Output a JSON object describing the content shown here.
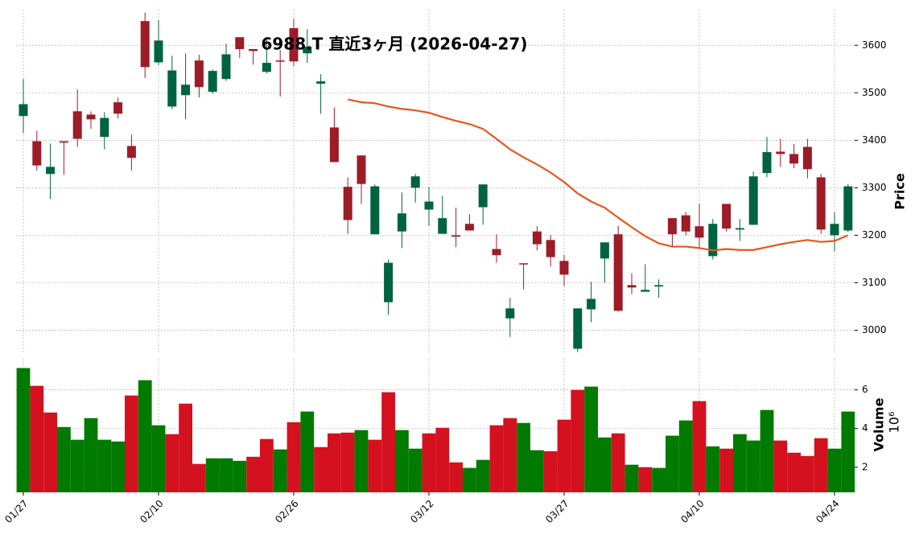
{
  "chart_data": {
    "type": "candlestick",
    "title": "6988.T 直近3ヶ月 (2026-04-27)",
    "categories": [
      "01/27",
      null,
      null,
      null,
      null,
      null,
      null,
      null,
      null,
      null,
      "02/10",
      null,
      null,
      null,
      null,
      null,
      null,
      null,
      null,
      null,
      "02/26",
      null,
      null,
      null,
      null,
      null,
      null,
      null,
      null,
      null,
      "03/12",
      null,
      null,
      null,
      null,
      null,
      null,
      null,
      null,
      null,
      "03/27",
      null,
      null,
      null,
      null,
      null,
      null,
      null,
      null,
      null,
      "04/10",
      null,
      null,
      null,
      null,
      null,
      null,
      null,
      null,
      null,
      "04/24",
      null
    ],
    "open": [
      3451,
      3398,
      3329,
      3398,
      3461,
      3454,
      3407,
      3480,
      3388,
      3651,
      3564,
      3471,
      3495,
      3568,
      3502,
      3529,
      3617,
      3592,
      3544,
      3568,
      3636,
      3583,
      3519,
      3427,
      3302,
      3368,
      3202,
      3059,
      3208,
      3300,
      3254,
      3203,
      3200,
      3224,
      3259,
      3171,
      3025,
      3141,
      3208,
      3190,
      3146,
      2961,
      3044,
      3151,
      3202,
      3095,
      3081,
      3092,
      3236,
      3242,
      3219,
      3156,
      3266,
      3212,
      3222,
      3331,
      3376,
      3371,
      3386,
      3322,
      3200,
      3210
    ],
    "high": [
      3529,
      3420,
      3393,
      3398,
      3507,
      3461,
      3459,
      3490,
      3412,
      3669,
      3653,
      3578,
      3583,
      3580,
      3549,
      3603,
      3617,
      3592,
      3615,
      3590,
      3656,
      3634,
      3539,
      3469,
      3322,
      3368,
      3307,
      3149,
      3290,
      3329,
      3302,
      3283,
      3258,
      3244,
      3307,
      3202,
      3068,
      3141,
      3219,
      3200,
      3159,
      3046,
      3102,
      3185,
      3220,
      3120,
      3139,
      3107,
      3236,
      3249,
      3266,
      3234,
      3266,
      3234,
      3334,
      3407,
      3403,
      3392,
      3403,
      3329,
      3249,
      3308
    ],
    "low": [
      3415,
      3336,
      3276,
      3327,
      3386,
      3424,
      3381,
      3446,
      3336,
      3531,
      3559,
      3466,
      3444,
      3490,
      3498,
      3525,
      3573,
      3559,
      3541,
      3492,
      3556,
      3563,
      3456,
      3354,
      3203,
      3266,
      3202,
      3032,
      3173,
      3269,
      3220,
      3203,
      3175,
      3210,
      3222,
      3142,
      2986,
      3086,
      3168,
      3134,
      3093,
      2954,
      3017,
      3100,
      3039,
      3076,
      3081,
      3068,
      3176,
      3200,
      3173,
      3149,
      3208,
      3188,
      3222,
      3322,
      3344,
      3341,
      3320,
      3203,
      3166,
      3207
    ],
    "close": [
      3476,
      3347,
      3344,
      3395,
      3403,
      3444,
      3447,
      3456,
      3363,
      3554,
      3610,
      3547,
      3517,
      3512,
      3546,
      3581,
      3592,
      3588,
      3563,
      3566,
      3566,
      3597,
      3524,
      3354,
      3232,
      3308,
      3303,
      3142,
      3246,
      3324,
      3271,
      3236,
      3197,
      3210,
      3307,
      3158,
      3046,
      3139,
      3181,
      3154,
      3117,
      3046,
      3066,
      3185,
      3041,
      3090,
      3085,
      3095,
      3202,
      3208,
      3195,
      3224,
      3214,
      3215,
      3324,
      3375,
      3371,
      3351,
      3339,
      3212,
      3224,
      3303
    ],
    "up_color": "#006340",
    "down_color": "#9c1c28",
    "ylabel": "Price",
    "ylim": [
      2950,
      3675
    ],
    "yticks": [
      3000,
      3100,
      3200,
      3300,
      3400,
      3500,
      3600
    ],
    "grid": true,
    "ma": {
      "color": "#e8561b",
      "values": [
        null,
        null,
        null,
        null,
        null,
        null,
        null,
        null,
        null,
        null,
        null,
        null,
        null,
        null,
        null,
        null,
        null,
        null,
        null,
        null,
        null,
        null,
        null,
        null,
        3486,
        3480,
        3478,
        3471,
        3466,
        3463,
        3458,
        3449,
        3441,
        3434,
        3424,
        3403,
        3381,
        3364,
        3349,
        3332,
        3312,
        3288,
        3271,
        3258,
        3237,
        3217,
        3198,
        3183,
        3176,
        3176,
        3173,
        3168,
        3171,
        3169,
        3169,
        3175,
        3181,
        3186,
        3190,
        3186,
        3188,
        3200
      ]
    },
    "volume": {
      "ylabel": "Volume",
      "exponent_label": "10⁶",
      "ylim": [
        0.7,
        7.65
      ],
      "yticks": [
        2,
        4,
        6
      ],
      "values": [
        7.13,
        6.21,
        4.83,
        4.08,
        3.42,
        4.54,
        3.42,
        3.33,
        5.71,
        6.5,
        4.17,
        3.71,
        5.29,
        2.17,
        2.46,
        2.46,
        2.33,
        2.54,
        3.46,
        2.92,
        4.33,
        4.88,
        3.04,
        3.75,
        3.79,
        3.92,
        3.42,
        5.88,
        3.92,
        2.96,
        3.75,
        4.04,
        2.25,
        1.96,
        2.38,
        4.17,
        4.54,
        4.29,
        2.88,
        2.83,
        4.46,
        6.0,
        6.17,
        3.54,
        3.75,
        2.13,
        2.0,
        1.96,
        3.63,
        4.42,
        5.42,
        3.08,
        2.96,
        3.71,
        3.38,
        4.96,
        3.38,
        2.75,
        2.58,
        3.5,
        2.96,
        4.88
      ],
      "colors": [
        "#007a00",
        "#d4111e",
        "#d4111e",
        "#007a00",
        "#007a00",
        "#007a00",
        "#007a00",
        "#007a00",
        "#d4111e",
        "#007a00",
        "#007a00",
        "#d4111e",
        "#d4111e",
        "#d4111e",
        "#007a00",
        "#007a00",
        "#007a00",
        "#d4111e",
        "#d4111e",
        "#007a00",
        "#d4111e",
        "#007a00",
        "#d4111e",
        "#d4111e",
        "#d4111e",
        "#007a00",
        "#d4111e",
        "#d4111e",
        "#007a00",
        "#007a00",
        "#d4111e",
        "#d4111e",
        "#d4111e",
        "#007a00",
        "#007a00",
        "#d4111e",
        "#d4111e",
        "#007a00",
        "#007a00",
        "#d4111e",
        "#d4111e",
        "#d4111e",
        "#007a00",
        "#007a00",
        "#d4111e",
        "#007a00",
        "#d4111e",
        "#007a00",
        "#007a00",
        "#007a00",
        "#d4111e",
        "#007a00",
        "#d4111e",
        "#007a00",
        "#007a00",
        "#007a00",
        "#d4111e",
        "#d4111e",
        "#d4111e",
        "#d4111e",
        "#007a00",
        "#007a00"
      ]
    }
  }
}
